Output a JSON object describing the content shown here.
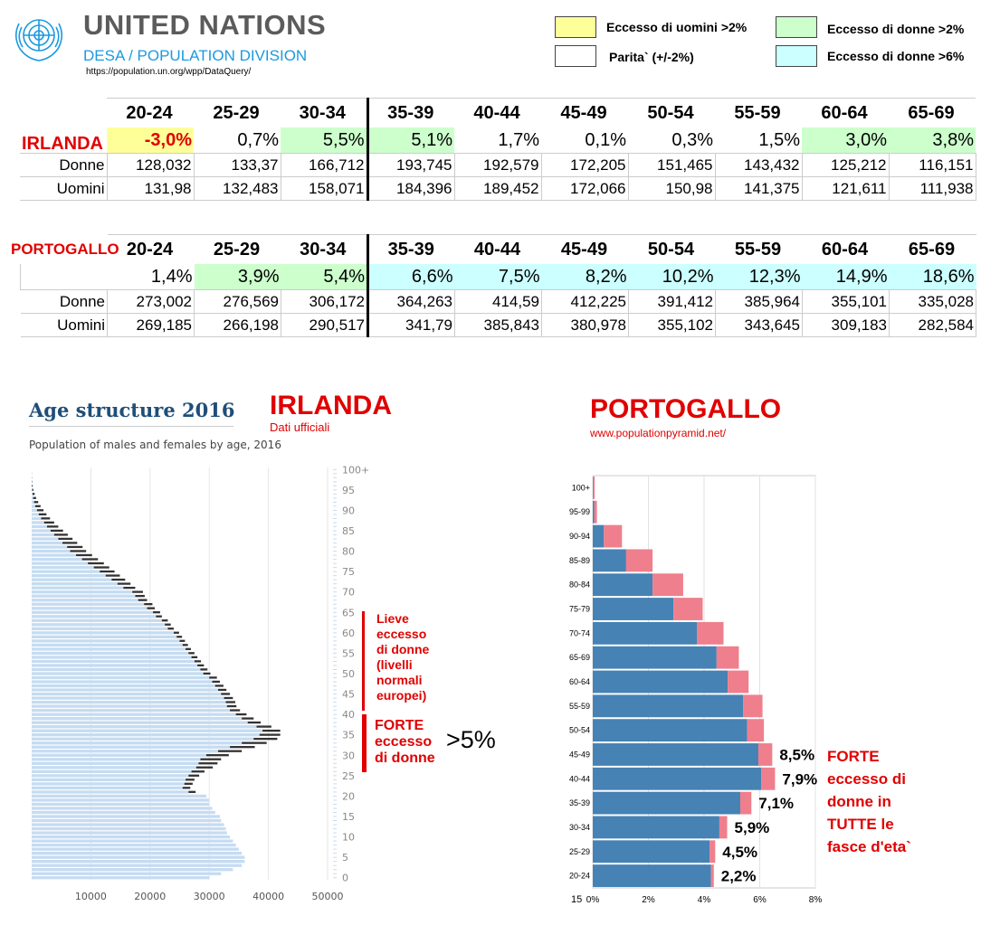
{
  "header": {
    "org": "UNITED NATIONS",
    "division": "DESA / POPULATION DIVISION",
    "url": "https://population.un.org/wpp/DataQuery/",
    "logo_icon": "un-emblem-icon"
  },
  "legend": [
    {
      "label": "Eccesso di uomini >2%",
      "color": "#ffff99"
    },
    {
      "label": "Eccesso di donne >2%",
      "color": "#ccffcc"
    },
    {
      "label": "Parita` (+/-2%)",
      "color": "#ffffff"
    },
    {
      "label": "Eccesso di donne >6%",
      "color": "#ccffff"
    }
  ],
  "tables": {
    "age_groups": [
      "20-24",
      "25-29",
      "30-34",
      "35-39",
      "40-44",
      "45-49",
      "50-54",
      "55-59",
      "60-64",
      "65-69"
    ],
    "ireland": {
      "name": "IRLANDA",
      "excess": [
        "-3,0%",
        "0,7%",
        "5,5%",
        "5,1%",
        "1,7%",
        "0,1%",
        "0,3%",
        "1,5%",
        "3,0%",
        "3,8%"
      ],
      "excess_class": [
        "yellow",
        "",
        "green",
        "green",
        "",
        "",
        "",
        "",
        "green",
        "green"
      ],
      "donne_label": "Donne",
      "uomini_label": "Uomini",
      "donne": [
        "128,032",
        "133,37",
        "166,712",
        "193,745",
        "192,579",
        "172,205",
        "151,465",
        "143,432",
        "125,212",
        "116,151"
      ],
      "uomini": [
        "131,98",
        "132,483",
        "158,071",
        "184,396",
        "189,452",
        "172,066",
        "150,98",
        "141,375",
        "121,611",
        "111,938"
      ]
    },
    "portugal": {
      "name": "PORTOGALLO",
      "excess": [
        "1,4%",
        "3,9%",
        "5,4%",
        "6,6%",
        "7,5%",
        "8,2%",
        "10,2%",
        "12,3%",
        "14,9%",
        "18,6%"
      ],
      "excess_class": [
        "",
        "green",
        "green",
        "cyan",
        "cyan",
        "cyan",
        "cyan",
        "cyan",
        "cyan",
        "cyan"
      ],
      "donne_label": "Donne",
      "uomini_label": "Uomini",
      "donne": [
        "273,002",
        "276,569",
        "306,172",
        "364,263",
        "414,59",
        "412,225",
        "391,412",
        "385,964",
        "355,101",
        "335,028"
      ],
      "uomini": [
        "269,185",
        "266,198",
        "290,517",
        "341,79",
        "385,843",
        "380,978",
        "355,102",
        "343,645",
        "309,183",
        "282,584"
      ]
    }
  },
  "ireland_chart": {
    "title": "Age structure 2016",
    "subtitle": "Population of males and females by age, 2016",
    "country_label": "IRLANDA",
    "source_label": "Dati ufficiali",
    "note_mild": "Lieve eccesso di donne (livelli normali europei)",
    "note_strong": "FORTE eccesso di donne",
    "note_pct": ">5%",
    "colors": {
      "bar": "#c5dcf2",
      "female_extra": "#333333"
    }
  },
  "portugal_chart": {
    "country_label": "PORTOGALLO",
    "source_label": "www.populationpyramid.net/",
    "note": "FORTE eccesso di donne in TUTTE le fasce d'eta`",
    "colors": {
      "male": "#4682b4",
      "female": "#ef7f8d"
    }
  },
  "chart_data": [
    {
      "type": "bar",
      "orientation": "horizontal",
      "title": "Age structure 2016",
      "subtitle": "Population of males and females by age, 2016",
      "x_ticks": [
        "10000",
        "20000",
        "30000",
        "40000",
        "50000"
      ],
      "xlim": [
        0,
        50000
      ],
      "y_ticks": [
        "0",
        "5",
        "10",
        "15",
        "20",
        "25",
        "30",
        "35",
        "40",
        "45",
        "50",
        "55",
        "60",
        "65",
        "70",
        "75",
        "80",
        "85",
        "90",
        "95",
        "100+"
      ],
      "age": [
        0,
        1,
        2,
        3,
        4,
        5,
        6,
        7,
        8,
        9,
        10,
        11,
        12,
        13,
        14,
        15,
        16,
        17,
        18,
        19,
        20,
        21,
        22,
        23,
        24,
        25,
        26,
        27,
        28,
        29,
        30,
        31,
        32,
        33,
        34,
        35,
        36,
        37,
        38,
        39,
        40,
        41,
        42,
        43,
        44,
        45,
        46,
        47,
        48,
        49,
        50,
        51,
        52,
        53,
        54,
        55,
        56,
        57,
        58,
        59,
        60,
        61,
        62,
        63,
        64,
        65,
        66,
        67,
        68,
        69,
        70,
        71,
        72,
        73,
        74,
        75,
        76,
        77,
        78,
        79,
        80,
        81,
        82,
        83,
        84,
        85,
        86,
        87,
        88,
        89,
        90,
        91,
        92,
        93,
        94,
        95,
        96,
        97,
        98,
        99,
        100
      ],
      "series": [
        {
          "values": [
            30000,
            32000,
            34000,
            35500,
            36000,
            36000,
            35500,
            35000,
            34500,
            34000,
            33500,
            33000,
            32800,
            32500,
            32000,
            31800,
            31000,
            30500,
            30000,
            30000,
            29500,
            26500,
            25500,
            25800,
            26000,
            26500,
            27000,
            27800,
            28200,
            28500,
            29500,
            31500,
            33500,
            35500,
            37500,
            38500,
            39000,
            38000,
            36500,
            35500,
            34500,
            33500,
            33000,
            32800,
            32500,
            32000,
            31500,
            31000,
            30500,
            30000,
            29000,
            28500,
            28000,
            27500,
            27000,
            26500,
            26000,
            25500,
            25000,
            24500,
            24000,
            23000,
            22500,
            22000,
            21000,
            20500,
            19500,
            19000,
            18000,
            17500,
            17000,
            15500,
            14500,
            13500,
            12500,
            11500,
            10500,
            9500,
            8500,
            7500,
            6500,
            6000,
            5200,
            4500,
            3800,
            3200,
            2600,
            2100,
            1600,
            1200,
            900,
            600,
            400,
            250,
            150,
            80,
            40,
            20,
            10,
            5,
            2
          ]
        },
        {
          "values": [
            0,
            0,
            0,
            0,
            0,
            0,
            0,
            0,
            0,
            0,
            0,
            0,
            0,
            0,
            0,
            0,
            0,
            0,
            0,
            0,
            0,
            1200,
            1300,
            1400,
            1500,
            1800,
            2200,
            2800,
            3200,
            3500,
            3800,
            4000,
            4200,
            4200,
            4000,
            3500,
            3000,
            2500,
            2200,
            2000,
            1800,
            1700,
            1600,
            1600,
            1500,
            1500,
            1400,
            1400,
            1300,
            1300,
            1200,
            1200,
            1100,
            1100,
            1000,
            1000,
            900,
            900,
            900,
            900,
            900,
            1000,
            1000,
            1000,
            1000,
            1200,
            1300,
            1400,
            1500,
            1600,
            1800,
            2000,
            2200,
            2300,
            2400,
            2500,
            2600,
            2700,
            2700,
            2700,
            2700,
            2600,
            2500,
            2400,
            2300,
            2100,
            1900,
            1700,
            1500,
            1300,
            1100,
            900,
            700,
            500,
            350,
            200,
            120,
            60,
            30,
            15,
            5
          ]
        }
      ]
    },
    {
      "type": "bar",
      "orientation": "horizontal",
      "categories": [
        "100+",
        "95-99",
        "90-94",
        "85-89",
        "80-84",
        "75-79",
        "70-74",
        "65-69",
        "60-64",
        "55-59",
        "50-54",
        "45-49",
        "40-44",
        "35-39",
        "30-34",
        "25-29",
        "20-24"
      ],
      "x_ticks": [
        "0%",
        "2%",
        "4%",
        "6%",
        "8%"
      ],
      "y_extra_tick": "15",
      "xlim": [
        0,
        8
      ],
      "series": [
        {
          "values": [
            0.02,
            0.05,
            0.4,
            1.2,
            2.15,
            2.9,
            3.75,
            4.45,
            4.85,
            5.4,
            5.55,
            5.95,
            6.05,
            5.3,
            4.55,
            4.2,
            4.25
          ]
        },
        {
          "values": [
            0.05,
            0.1,
            0.65,
            0.95,
            1.1,
            1.05,
            0.95,
            0.8,
            0.75,
            0.7,
            0.6,
            0.5,
            0.5,
            0.4,
            0.28,
            0.2,
            0.1
          ]
        }
      ],
      "labels": [
        {
          "category": "45-49",
          "text": "8,5%"
        },
        {
          "category": "40-44",
          "text": "7,9%"
        },
        {
          "category": "35-39",
          "text": "7,1%"
        },
        {
          "category": "30-34",
          "text": "5,9%"
        },
        {
          "category": "25-29",
          "text": "4,5%"
        },
        {
          "category": "20-24",
          "text": "2,2%"
        }
      ]
    }
  ]
}
